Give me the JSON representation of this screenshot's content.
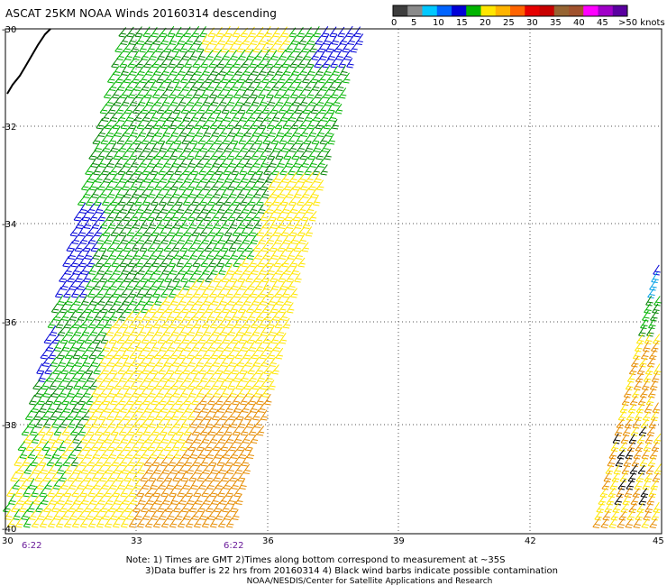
{
  "title": "ASCAT 25KM NOAA Winds 20160314 descending",
  "legend": {
    "colors": [
      "#3d3d3d",
      "#8a8a8a",
      "#00c8ff",
      "#0064ff",
      "#0000d7",
      "#00b400",
      "#ffe600",
      "#ffb400",
      "#ff6400",
      "#e60000",
      "#c80000",
      "#966432",
      "#a0522d",
      "#ff00ff",
      "#a000c8",
      "#5a00a0"
    ],
    "labels": [
      "0",
      "5",
      "10",
      "15",
      "20",
      "25",
      "30",
      "35",
      "40",
      "45",
      ">50 knots"
    ]
  },
  "axes": {
    "lat_labels": [
      "-30",
      "-32",
      "-34",
      "-36",
      "-38",
      "-40"
    ],
    "lon_labels": [
      "30",
      "33",
      "36",
      "39",
      "42",
      "45"
    ]
  },
  "time_labels": [
    "6:22",
    "6:22"
  ],
  "notes": {
    "line1": "Note: 1) Times are GMT 2)Times along bottom correspond to measurement at ~35S",
    "line2": "3)Data buffer is 22 hrs from 20160314 4) Black wind barbs indicate possible contamination",
    "line3": "NOAA/NESDIS/Center for Satellite Applications and Research"
  },
  "barb_colors": {
    "blue": "#0000d7",
    "green": "#00b400",
    "dark_green": "#008200",
    "yellow": "#ffe600",
    "orange": "#e68c00",
    "cyan": "#00a0e6",
    "black": "#000000"
  }
}
